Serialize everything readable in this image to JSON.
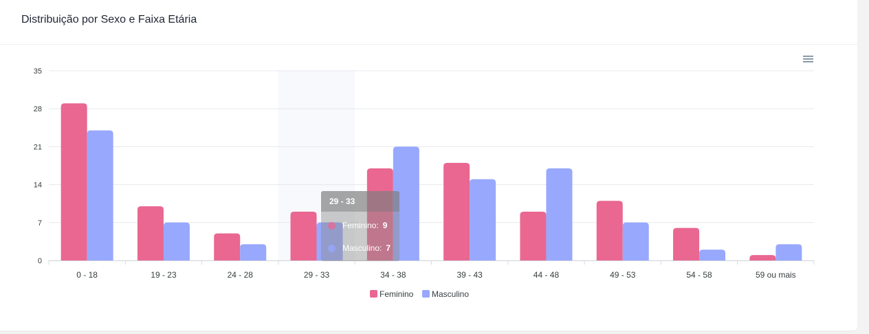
{
  "card": {
    "title": "Distribuição por Sexo e Faixa Etária",
    "menu_icon": "hamburger-menu-icon"
  },
  "chart_data": {
    "type": "bar",
    "categories": [
      "0 - 18",
      "19 - 23",
      "24 - 28",
      "29 - 33",
      "34 - 38",
      "39 - 43",
      "44 - 48",
      "49 - 53",
      "54 - 58",
      "59 ou mais"
    ],
    "series": [
      {
        "name": "Feminino",
        "color": "#e96791",
        "values": [
          29,
          10,
          5,
          9,
          17,
          18,
          9,
          11,
          6,
          1
        ]
      },
      {
        "name": "Masculino",
        "color": "#97a8fd",
        "values": [
          24,
          7,
          3,
          7,
          21,
          15,
          17,
          7,
          2,
          3
        ]
      }
    ],
    "yticks": [
      0,
      7,
      14,
      21,
      28,
      35
    ],
    "ylim": [
      0,
      35
    ],
    "grid": true,
    "legend_position": "bottom",
    "hovered_category_index": 3
  },
  "tooltip": {
    "title": "29 - 33",
    "rows": [
      {
        "label": "Feminino:",
        "value": "9",
        "color": "#e96791"
      },
      {
        "label": "Masculino:",
        "value": "7",
        "color": "#97a8fd"
      }
    ]
  }
}
